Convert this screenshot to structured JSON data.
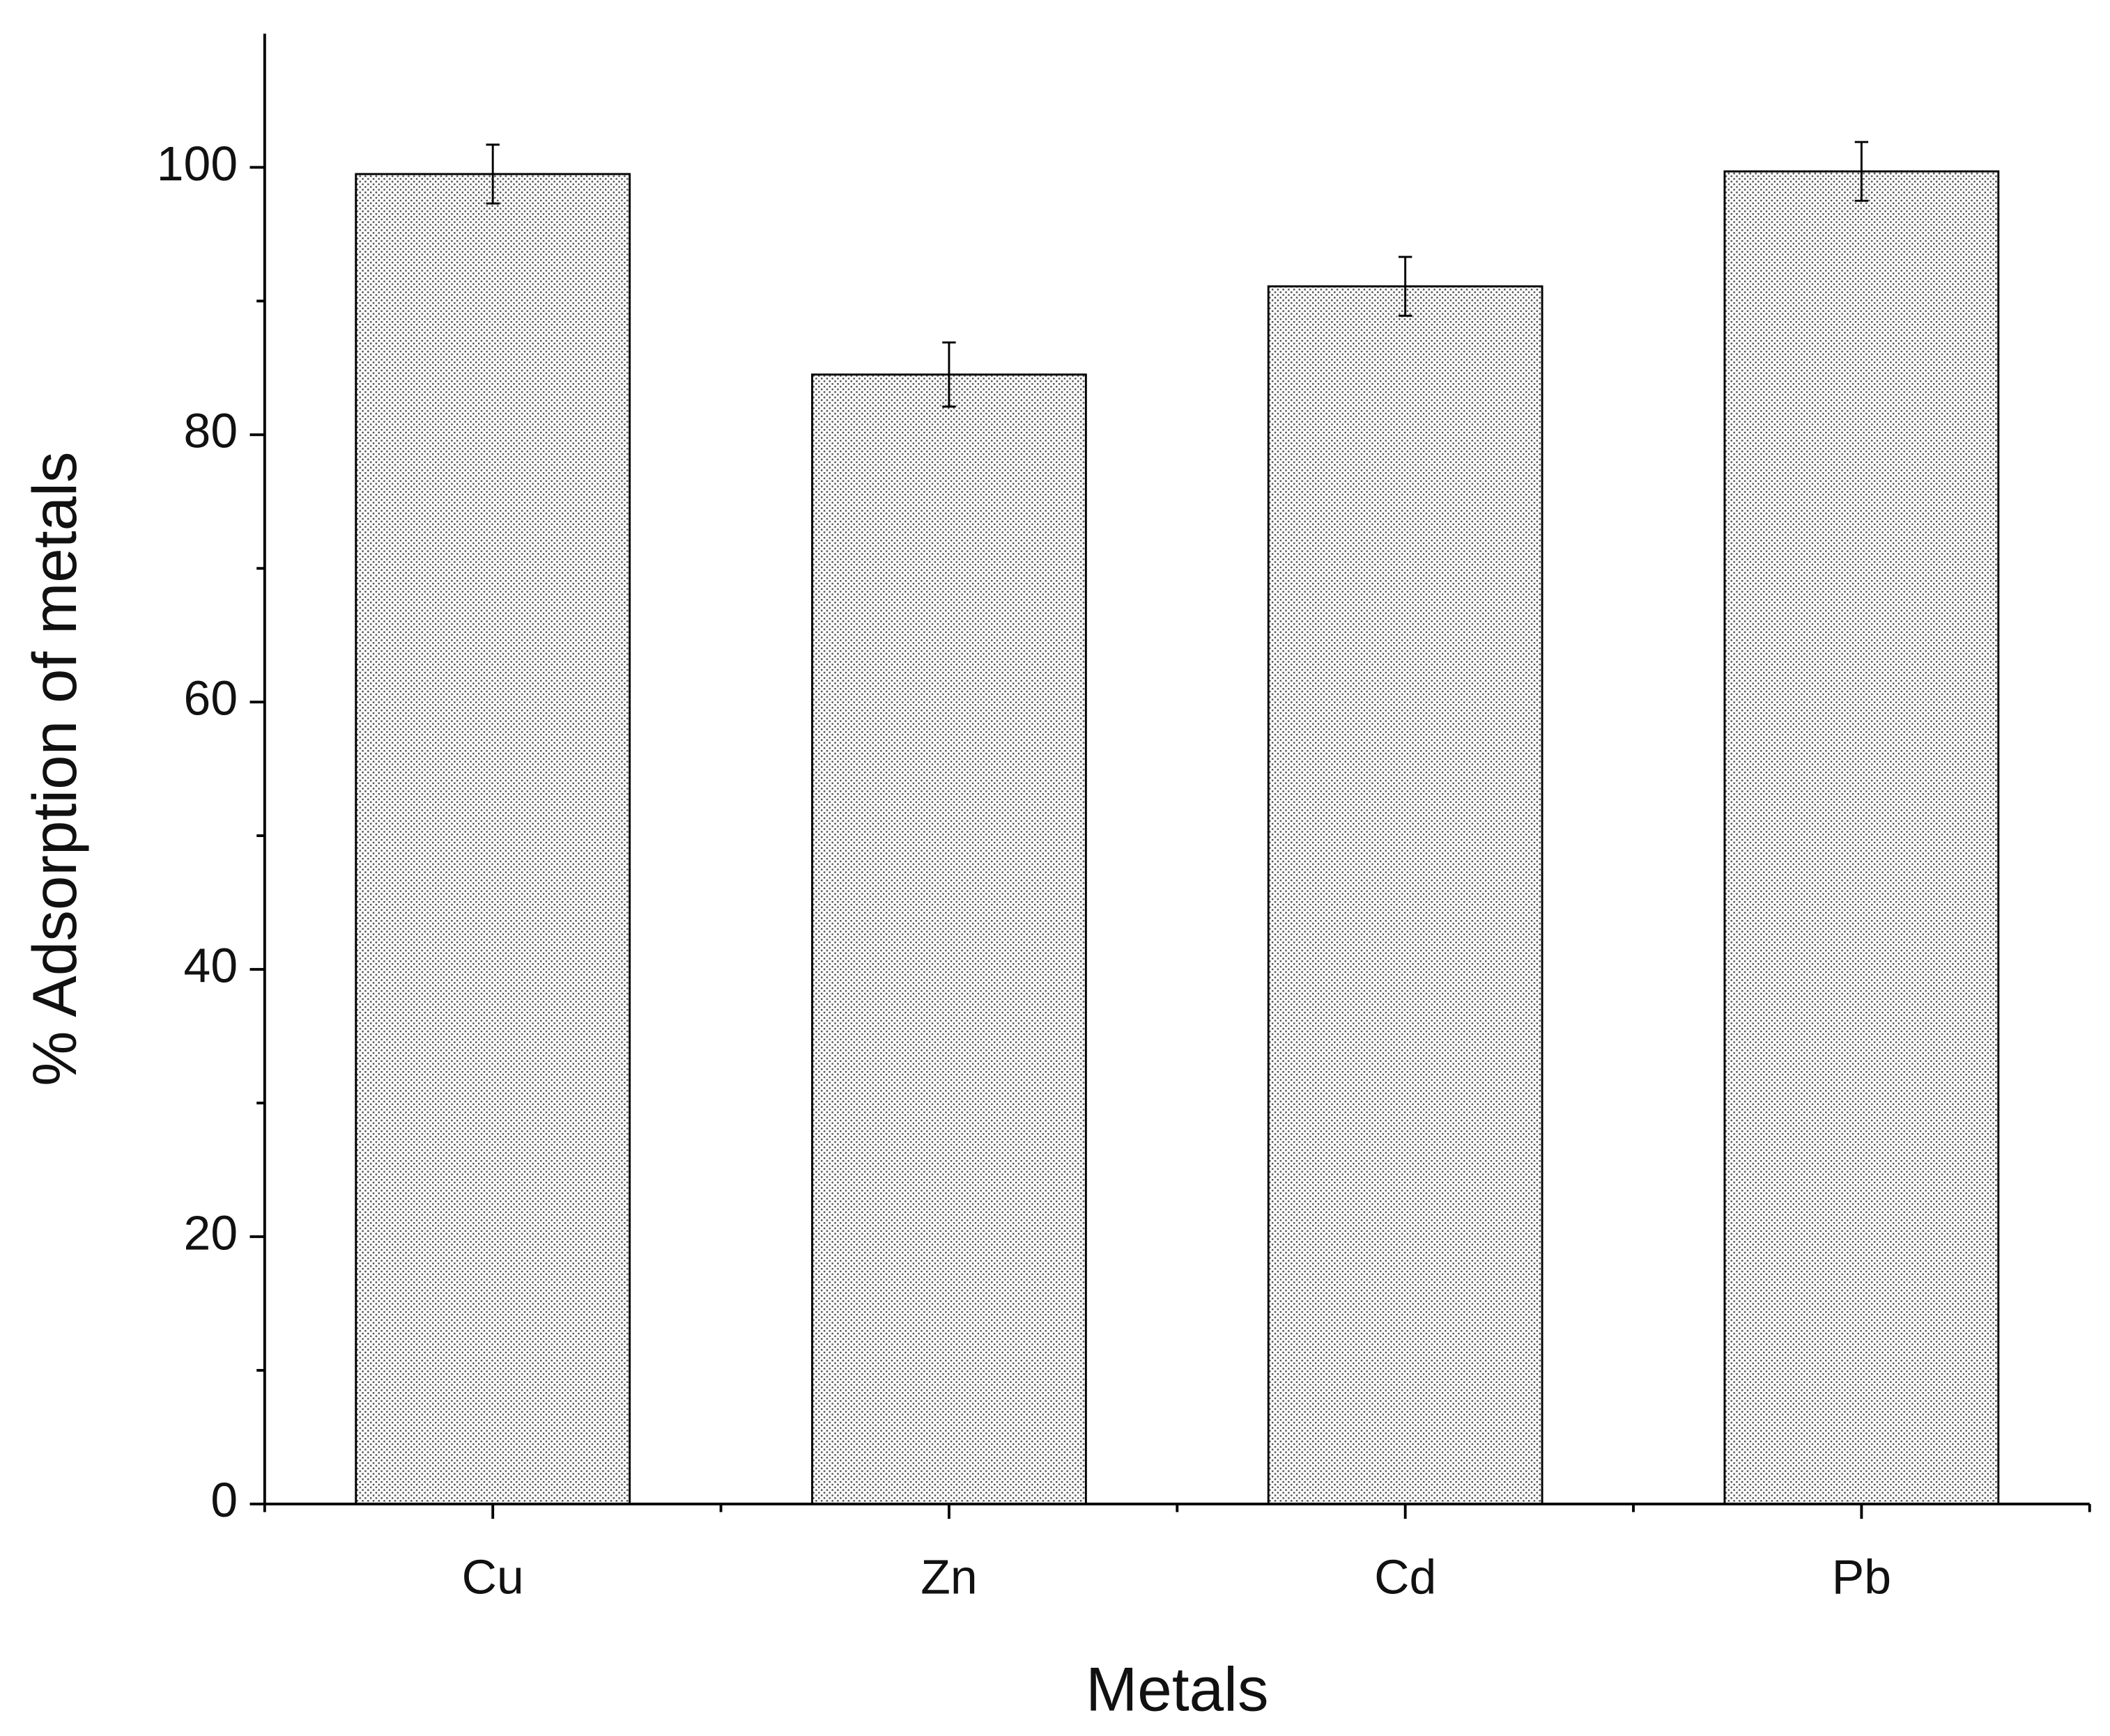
{
  "chart_data": {
    "type": "bar",
    "x_label": "Metals",
    "y_label": "% Adsorption of metals",
    "categories": [
      "Cu",
      "Zn",
      "Cd",
      "Pb"
    ],
    "values": [
      99.5,
      84.5,
      91.1,
      99.7
    ],
    "errors": [
      2.2,
      2.4,
      2.2,
      2.2
    ],
    "color": "#555555",
    "ylim": [
      0,
      110
    ],
    "yticks": [
      0,
      20,
      40,
      60,
      80,
      100
    ],
    "y_minor_ticks": [
      10,
      30,
      50,
      70,
      90
    ],
    "grid": false
  }
}
